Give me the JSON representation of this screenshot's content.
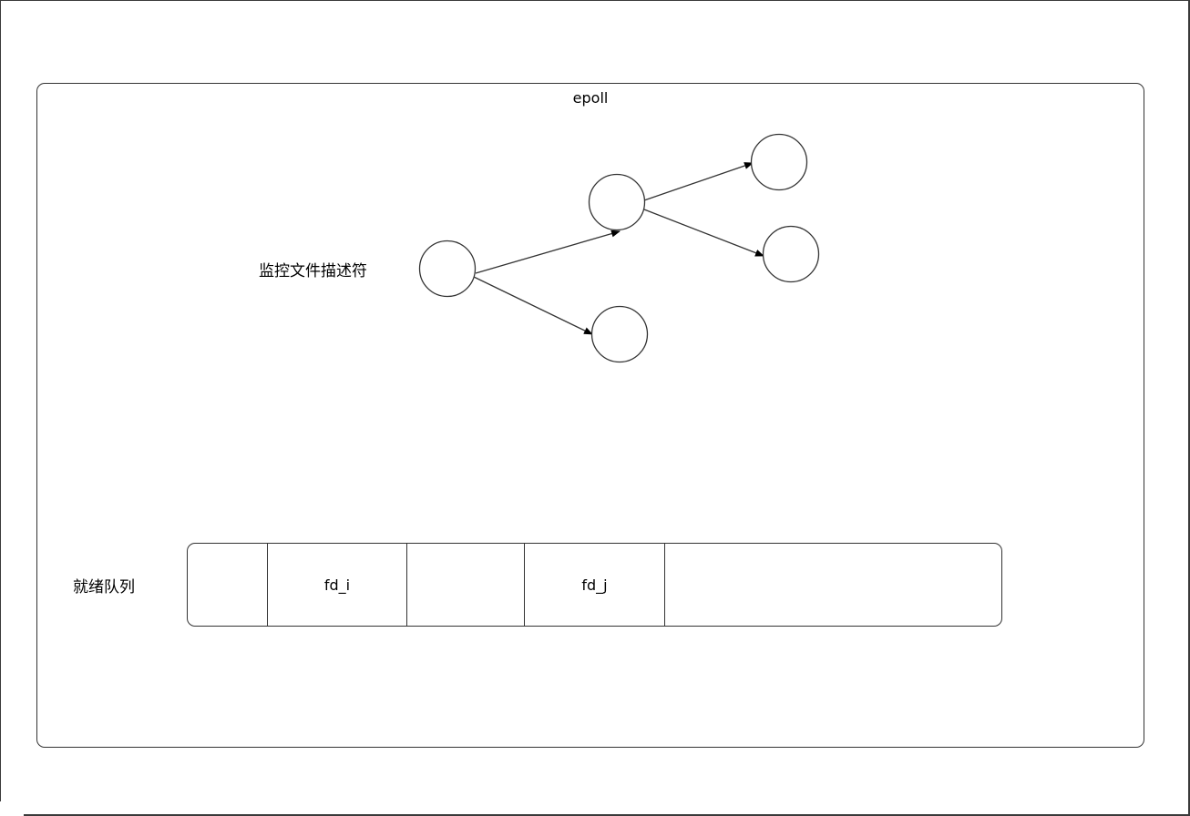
{
  "epoll": {
    "title": "epoll"
  },
  "monitored_fds": {
    "label": "监控文件描述符"
  },
  "ready_queue": {
    "label": "就绪队列",
    "slots": [
      "",
      "fd_i",
      "",
      "fd_j",
      ""
    ]
  }
}
